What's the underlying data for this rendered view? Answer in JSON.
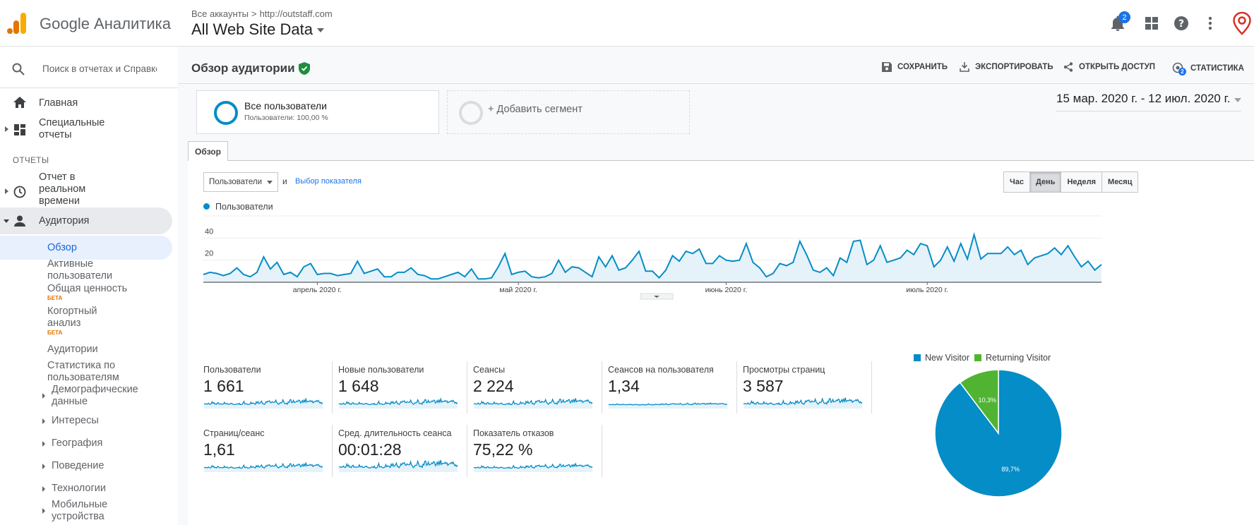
{
  "header": {
    "brand": "Google Аналитика",
    "breadcrumb_all": "Все аккаунты",
    "breadcrumb_sep": ">",
    "breadcrumb_property": "http://outstaff.com",
    "view": "All Web Site Data",
    "notification_count": "2"
  },
  "sidebar": {
    "search_placeholder": "Поиск в отчетах и Справке",
    "home": "Главная",
    "custom_reports": "Специальные отчеты",
    "reports_section": "ОТЧЕТЫ",
    "realtime": "Отчет в реальном времени",
    "audience": "Аудитория",
    "overview": "Обзор",
    "active_users": "Активные пользователи",
    "lifetime_value": "Общая ценность",
    "beta": "БЕТА",
    "cohort": "Когортный анализ",
    "audiences": "Аудитории",
    "user_explorer": "Статистика по пользователям",
    "demographics": "Демографические данные",
    "interests": "Интересы",
    "geo": "География",
    "behavior": "Поведение",
    "technology": "Технологии",
    "mobile": "Мобильные устройства"
  },
  "main": {
    "title": "Обзор аудитории",
    "toolbar": {
      "save": "СОХРАНИТЬ",
      "export": "ЭКСПОРТИРОВАТЬ",
      "share": "ОТКРЫТЬ ДОСТУП",
      "insights": "СТАТИСТИКА",
      "insights_badge": "2"
    },
    "segment": {
      "name": "Все пользователи",
      "sub": "Пользователи: 100,00 %"
    },
    "add_segment": "+ Добавить сегмент",
    "date_range": "15 мар. 2020 г. - 12 июл. 2020 г.",
    "tab": "Обзор",
    "metric_select": "Пользователи",
    "and_text": "и",
    "metric_link": "Выбор показателя",
    "periods": [
      "Час",
      "День",
      "Неделя",
      "Месяц"
    ],
    "active_period": "День",
    "legend": "Пользователи"
  },
  "chart_data": [
    {
      "type": "area",
      "title": "",
      "series": [
        {
          "name": "Пользователи",
          "color": "#058dc7",
          "values": [
            7,
            9,
            8,
            6,
            8,
            13,
            7,
            5,
            9,
            23,
            12,
            18,
            7,
            9,
            5,
            14,
            17,
            7,
            8,
            8,
            6,
            7,
            8,
            19,
            8,
            10,
            12,
            5,
            5,
            9,
            9,
            13,
            7,
            6,
            3,
            3,
            5,
            7,
            9,
            5,
            12,
            3,
            3,
            4,
            14,
            26,
            7,
            9,
            10,
            5,
            4,
            5,
            8,
            20,
            9,
            14,
            13,
            9,
            5,
            23,
            14,
            24,
            11,
            13,
            20,
            28,
            10,
            10,
            4,
            11,
            24,
            19,
            28,
            26,
            30,
            17,
            17,
            24,
            20,
            19,
            20,
            35,
            18,
            13,
            5,
            8,
            17,
            15,
            18,
            37,
            25,
            11,
            9,
            13,
            6,
            22,
            18,
            37,
            38,
            16,
            20,
            33,
            18,
            20,
            22,
            29,
            25,
            35,
            33,
            14,
            20,
            32,
            19,
            35,
            21,
            43,
            21,
            26,
            26,
            26,
            32,
            25,
            29,
            16,
            22,
            24,
            26,
            31,
            25,
            33,
            23,
            14,
            19,
            11,
            16
          ]
        }
      ],
      "ylim": [
        0,
        60
      ],
      "yticks": [
        "60",
        "40",
        "20"
      ],
      "xticks": [
        {
          "label": "апрель 2020 г.",
          "index": 17
        },
        {
          "label": "май 2020 г.",
          "index": 47
        },
        {
          "label": "июнь 2020 г.",
          "index": 78
        },
        {
          "label": "июль 2020 г.",
          "index": 108
        }
      ],
      "grid": true
    },
    {
      "type": "pie",
      "slices": [
        {
          "label": "New Visitor",
          "value": 89.7,
          "display": "89,7%",
          "color": "#058dc7"
        },
        {
          "label": "Returning Visitor",
          "value": 10.3,
          "display": "10,3%",
          "color": "#50b432"
        }
      ]
    }
  ],
  "kpis": [
    {
      "label": "Пользователи",
      "value": "1 661"
    },
    {
      "label": "Новые пользователи",
      "value": "1 648"
    },
    {
      "label": "Сеансы",
      "value": "2 224"
    },
    {
      "label": "Сеансов на пользователя",
      "value": "1,34"
    },
    {
      "label": "Просмотры страниц",
      "value": "3 587"
    },
    {
      "label": "Страниц/сеанс",
      "value": "1,61"
    },
    {
      "label": "Сред. длительность сеанса",
      "value": "00:01:28"
    },
    {
      "label": "Показатель отказов",
      "value": "75,22 %"
    }
  ]
}
